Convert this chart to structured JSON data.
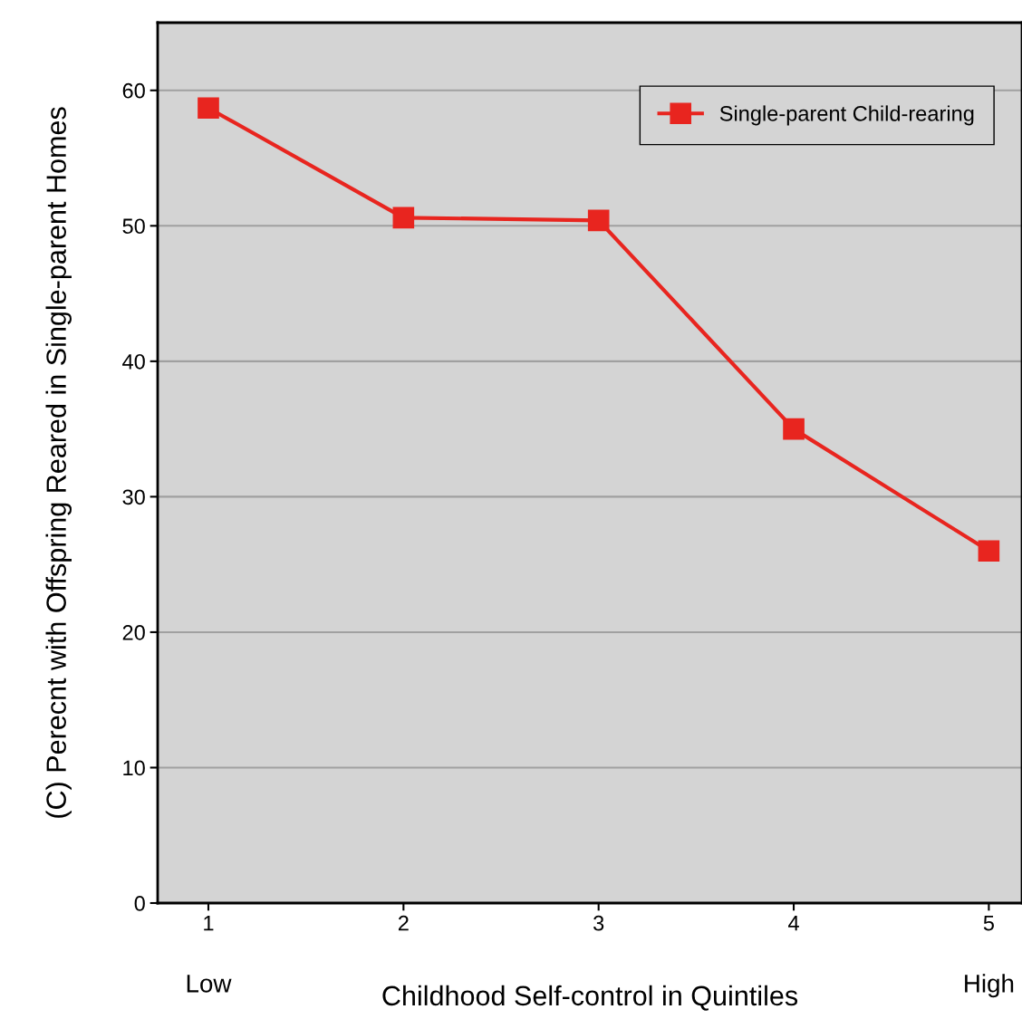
{
  "chart_data": {
    "type": "line",
    "xlabel": "Childhood Self-control in Quintiles",
    "ylabel": "(C) Perecnt with Offspring Reared in Single-parent Homes",
    "x": [
      1,
      2,
      3,
      4,
      5
    ],
    "series": [
      {
        "name": "Single-parent Child-rearing",
        "color": "#e8251f",
        "values": [
          58.7,
          50.6,
          50.4,
          35.0,
          26.0
        ]
      }
    ],
    "xlim": [
      0.74,
      5.17
    ],
    "xticks": [
      1,
      2,
      3,
      4,
      5
    ],
    "ylim": [
      0,
      65
    ],
    "yticks": [
      0,
      10,
      20,
      30,
      40,
      50,
      60
    ],
    "grid": "y",
    "legend": "top right",
    "marker": "square",
    "line_style": "solid",
    "annotations": [
      "Low",
      "High"
    ]
  }
}
